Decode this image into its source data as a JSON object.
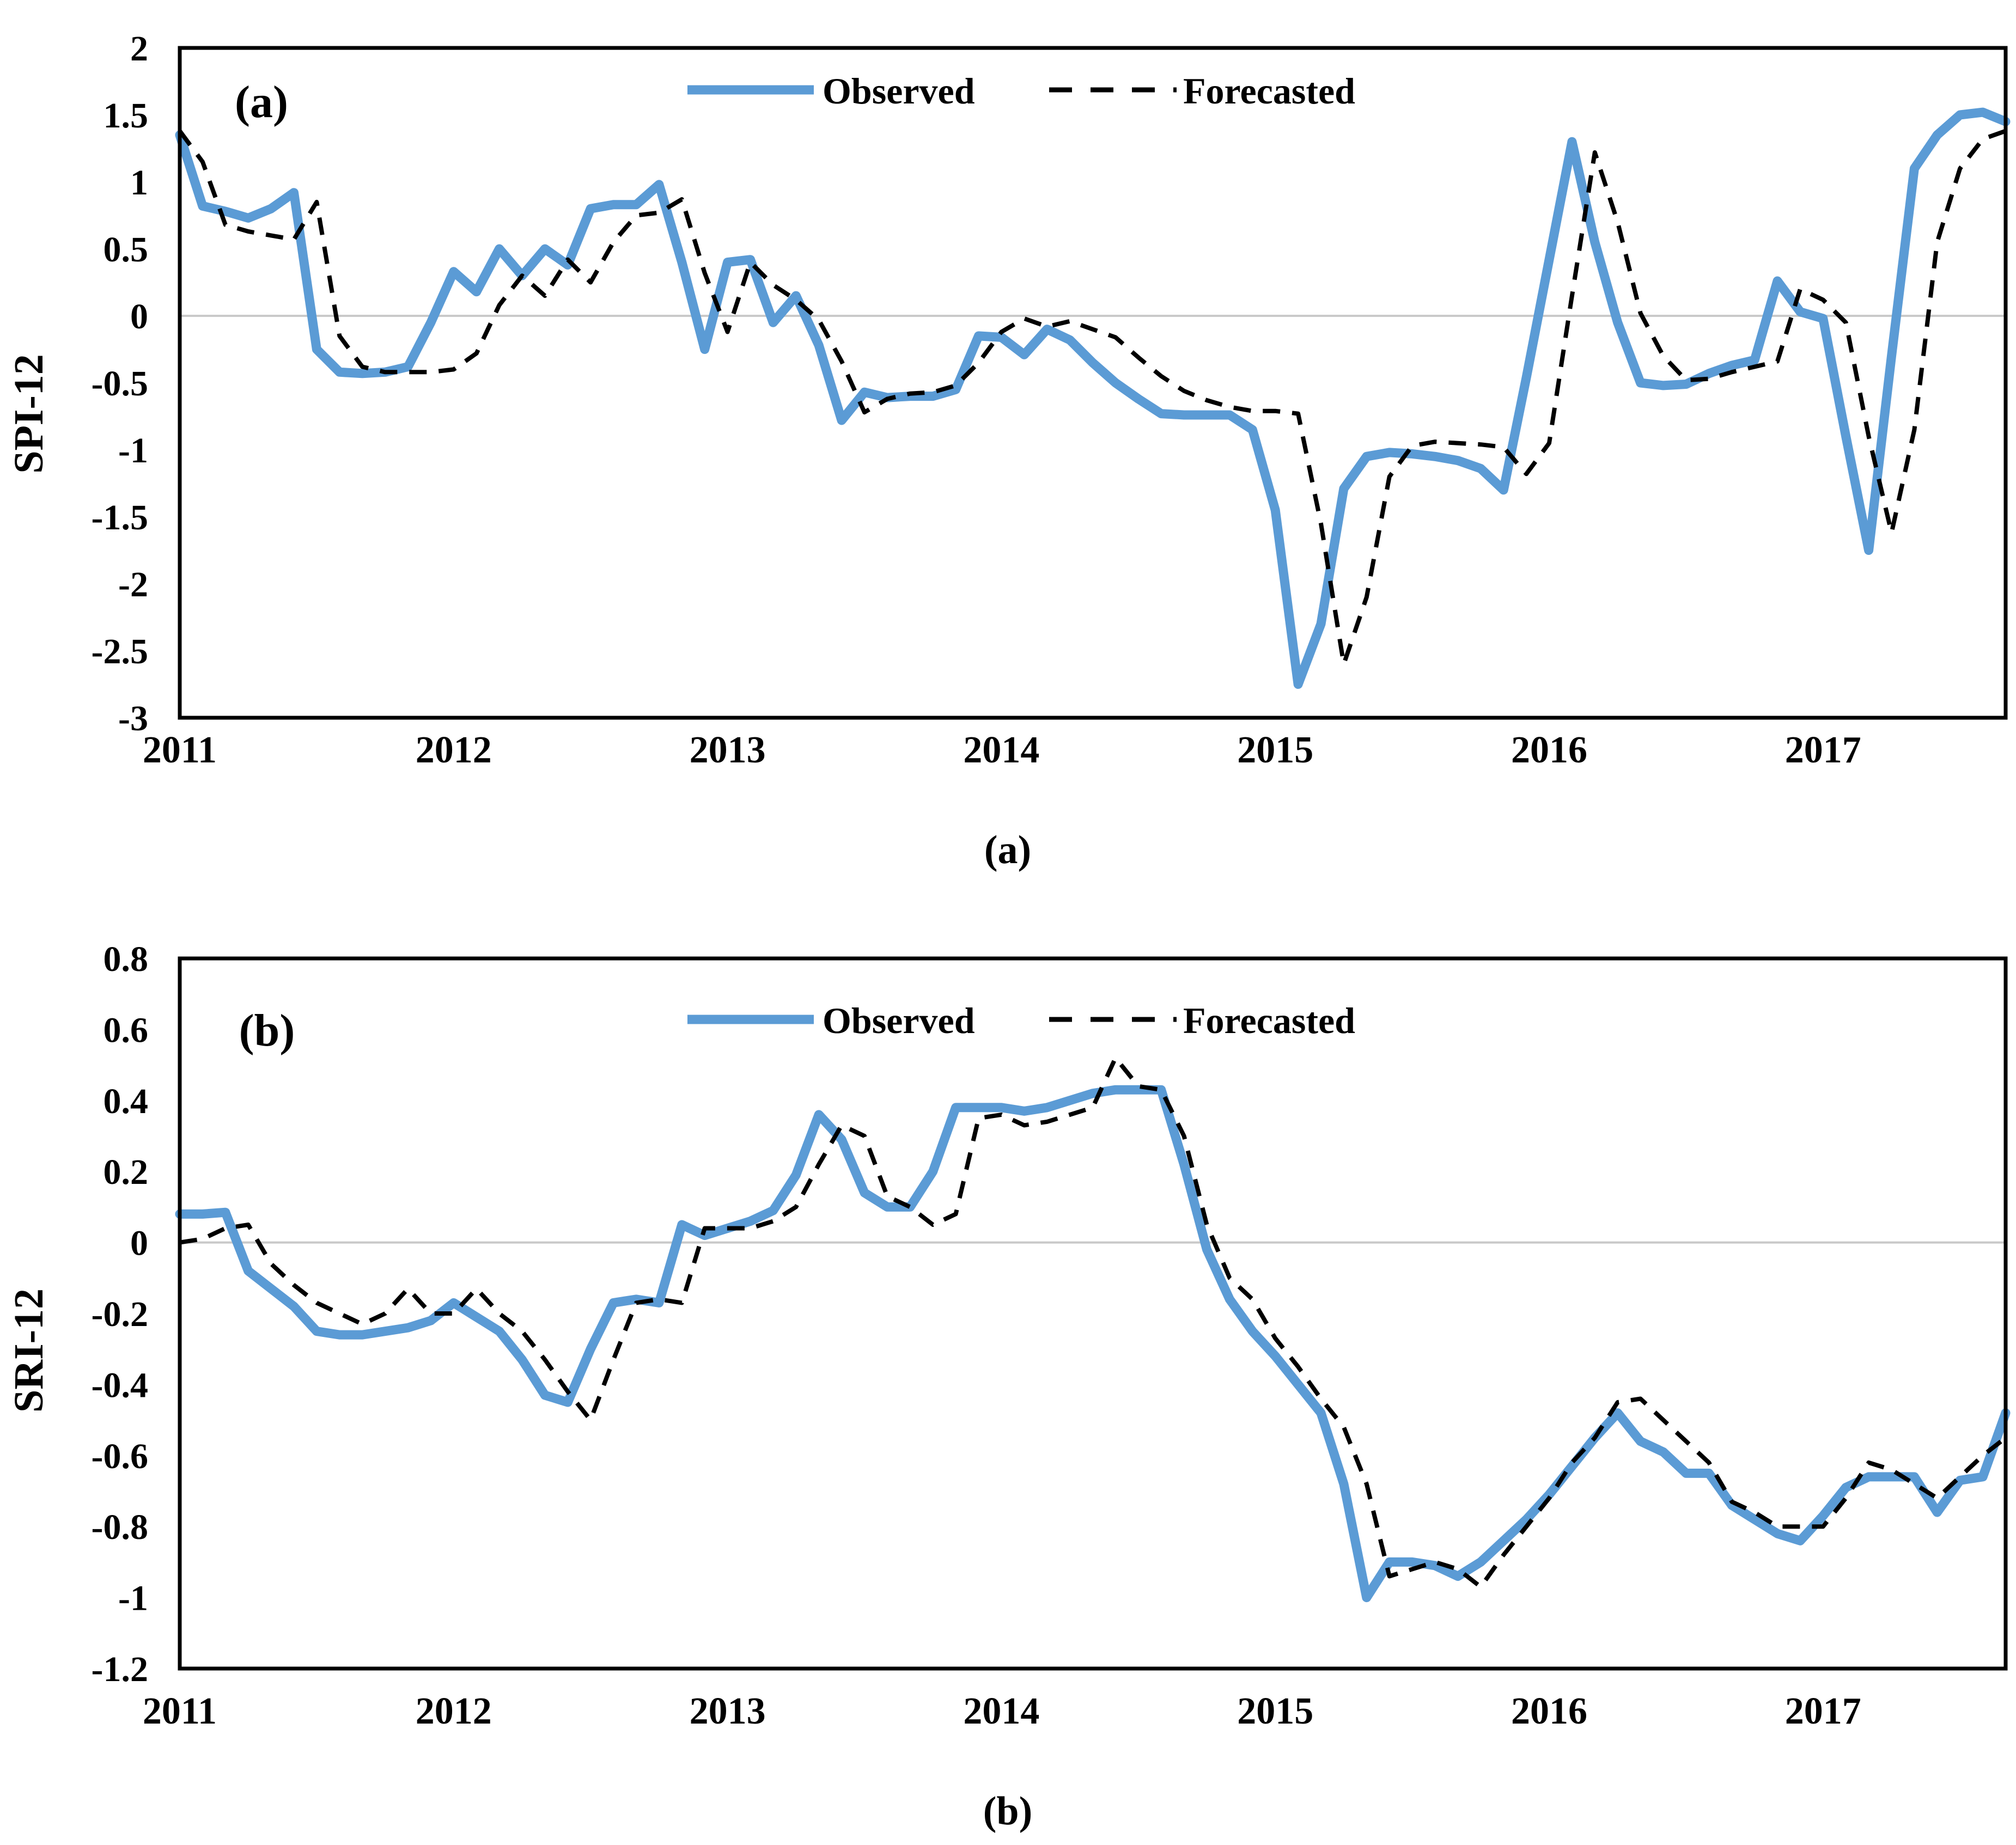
{
  "chart_data": [
    {
      "type": "line",
      "panel_label": "(a)",
      "caption": "(a)",
      "title": "",
      "xlabel": "",
      "ylabel": "SPI-12",
      "ylim": [
        -3,
        2
      ],
      "ytick_labels": [
        "2",
        "1.5",
        "1",
        "0.5",
        "0",
        "-0.5",
        "-1",
        "-1.5",
        "-2",
        "-2.5",
        "-3"
      ],
      "xtick_labels": [
        "2011",
        "2012",
        "2013",
        "2014",
        "2015",
        "2016",
        "2017"
      ],
      "xtick_month_index": [
        0,
        12,
        24,
        36,
        48,
        60,
        72
      ],
      "x_start": "2011-01",
      "x_end": "2017-09",
      "grid": "zero-line-only",
      "legend_position": "top-center",
      "colors": {
        "gridline": "#C9C9C9",
        "border": "#000000"
      },
      "series": [
        {
          "name": "Observed",
          "color": "#5B9BD5",
          "style": "solid",
          "values": [
            1.35,
            0.82,
            0.78,
            0.73,
            0.8,
            0.92,
            -0.25,
            -0.42,
            -0.43,
            -0.42,
            -0.38,
            -0.05,
            0.33,
            0.18,
            0.5,
            0.3,
            0.5,
            0.38,
            0.8,
            0.83,
            0.83,
            0.98,
            0.4,
            -0.25,
            0.4,
            0.42,
            -0.05,
            0.15,
            -0.22,
            -0.78,
            -0.57,
            -0.61,
            -0.6,
            -0.6,
            -0.55,
            -0.15,
            -0.16,
            -0.29,
            -0.1,
            -0.18,
            -0.35,
            -0.5,
            -0.62,
            -0.73,
            -0.74,
            -0.74,
            -0.74,
            -0.85,
            -1.45,
            -2.75,
            -2.3,
            -1.29,
            -1.05,
            -1.02,
            -1.03,
            -1.05,
            -1.08,
            -1.14,
            -1.3,
            -0.46,
            0.42,
            1.3,
            0.55,
            -0.05,
            -0.5,
            -0.52,
            -0.51,
            -0.43,
            -0.37,
            -0.33,
            0.26,
            0.03,
            -0.02,
            -0.9,
            -1.75,
            -0.3,
            1.1,
            1.35,
            1.5,
            1.52,
            1.45
          ]
        },
        {
          "name": "Forecasted",
          "color": "#000000",
          "style": "dashed",
          "values": [
            1.38,
            1.15,
            0.68,
            0.63,
            0.6,
            0.57,
            0.85,
            -0.15,
            -0.38,
            -0.42,
            -0.42,
            -0.42,
            -0.4,
            -0.28,
            0.08,
            0.3,
            0.15,
            0.42,
            0.25,
            0.55,
            0.75,
            0.77,
            0.87,
            0.32,
            -0.12,
            0.4,
            0.23,
            0.12,
            -0.03,
            -0.34,
            -0.72,
            -0.62,
            -0.58,
            -0.57,
            -0.52,
            -0.35,
            -0.12,
            -0.02,
            -0.08,
            -0.04,
            -0.1,
            -0.16,
            -0.31,
            -0.45,
            -0.56,
            -0.63,
            -0.68,
            -0.71,
            -0.71,
            -0.73,
            -1.55,
            -2.6,
            -2.1,
            -1.2,
            -0.97,
            -0.94,
            -0.95,
            -0.96,
            -0.98,
            -1.18,
            -0.95,
            0.15,
            1.22,
            0.7,
            0.02,
            -0.3,
            -0.48,
            -0.47,
            -0.42,
            -0.38,
            -0.34,
            0.2,
            0.12,
            -0.05,
            -0.9,
            -1.62,
            -0.85,
            0.55,
            1.1,
            1.32,
            1.38
          ]
        }
      ]
    },
    {
      "type": "line",
      "panel_label": "(b)",
      "caption": "(b)",
      "title": "",
      "xlabel": "",
      "ylabel": "SRI-12",
      "ylim": [
        -1.2,
        0.8
      ],
      "ytick_labels": [
        "0.8",
        "0.6",
        "0.4",
        "0.2",
        "0",
        "-0.2",
        "-0.4",
        "-0.6",
        "-0.8",
        "-1",
        "-1.2"
      ],
      "xtick_labels": [
        "2011",
        "2012",
        "2013",
        "2014",
        "2015",
        "2016",
        "2017"
      ],
      "xtick_month_index": [
        0,
        12,
        24,
        36,
        48,
        60,
        72
      ],
      "x_start": "2011-01",
      "x_end": "2017-09",
      "grid": "zero-line-only",
      "legend_position": "top-center",
      "colors": {
        "gridline": "#C9C9C9",
        "border": "#000000"
      },
      "series": [
        {
          "name": "Observed",
          "color": "#5B9BD5",
          "style": "solid",
          "values": [
            0.08,
            0.08,
            0.085,
            -0.08,
            -0.13,
            -0.18,
            -0.25,
            -0.26,
            -0.26,
            -0.25,
            -0.24,
            -0.22,
            -0.17,
            -0.21,
            -0.25,
            -0.33,
            -0.43,
            -0.45,
            -0.3,
            -0.17,
            -0.16,
            -0.17,
            0.05,
            0.02,
            0.04,
            0.06,
            0.09,
            0.19,
            0.36,
            0.29,
            0.14,
            0.1,
            0.1,
            0.2,
            0.38,
            0.38,
            0.38,
            0.37,
            0.38,
            0.4,
            0.42,
            0.43,
            0.43,
            0.43,
            0.22,
            -0.02,
            -0.16,
            -0.25,
            -0.32,
            -0.4,
            -0.48,
            -0.68,
            -1.0,
            -0.9,
            -0.9,
            -0.91,
            -0.94,
            -0.9,
            -0.84,
            -0.78,
            -0.71,
            -0.63,
            -0.55,
            -0.48,
            -0.56,
            -0.59,
            -0.65,
            -0.65,
            -0.74,
            -0.78,
            -0.82,
            -0.84,
            -0.77,
            -0.69,
            -0.66,
            -0.66,
            -0.66,
            -0.76,
            -0.67,
            -0.66,
            -0.48
          ]
        },
        {
          "name": "Forecasted",
          "color": "#000000",
          "style": "dashed",
          "values": [
            0.0,
            0.01,
            0.04,
            0.05,
            -0.06,
            -0.12,
            -0.17,
            -0.2,
            -0.23,
            -0.2,
            -0.13,
            -0.2,
            -0.2,
            -0.13,
            -0.2,
            -0.25,
            -0.33,
            -0.42,
            -0.5,
            -0.33,
            -0.17,
            -0.16,
            -0.17,
            0.04,
            0.04,
            0.04,
            0.06,
            0.1,
            0.22,
            0.33,
            0.3,
            0.13,
            0.1,
            0.05,
            0.08,
            0.35,
            0.36,
            0.33,
            0.34,
            0.36,
            0.38,
            0.52,
            0.44,
            0.43,
            0.3,
            0.05,
            -0.1,
            -0.16,
            -0.27,
            -0.35,
            -0.44,
            -0.52,
            -0.68,
            -0.94,
            -0.92,
            -0.9,
            -0.92,
            -0.97,
            -0.88,
            -0.8,
            -0.72,
            -0.62,
            -0.55,
            -0.45,
            -0.44,
            -0.5,
            -0.56,
            -0.62,
            -0.73,
            -0.76,
            -0.8,
            -0.8,
            -0.8,
            -0.72,
            -0.62,
            -0.64,
            -0.68,
            -0.72,
            -0.66,
            -0.6,
            -0.55
          ]
        }
      ]
    }
  ]
}
